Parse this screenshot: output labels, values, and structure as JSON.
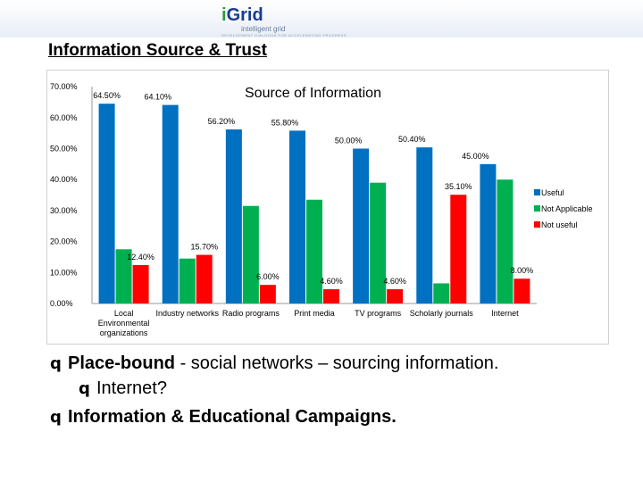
{
  "logo": {
    "prefix": "i",
    "main": "Grid",
    "sub": "intelligent grid",
    "tiny": "DEVELOPMENT DIALOGUE FOR ACCELERATING PROGRESS"
  },
  "slide_title": "Information Source & Trust",
  "bullets": [
    {
      "marker": "q",
      "bold": "Place-bound",
      "rest": " - social networks – sourcing information."
    },
    {
      "marker": "q",
      "bold": "",
      "rest": "Internet?"
    },
    {
      "marker": "q",
      "bold": "Information & Educational Campaigns.",
      "rest": ""
    }
  ],
  "colors": {
    "useful": "#0070c0",
    "not_applicable": "#00b050",
    "not_useful": "#ff0000"
  },
  "chart_data": {
    "type": "bar",
    "title": "Source of Information",
    "categories": [
      [
        "Local",
        "Environmental",
        "organizations"
      ],
      [
        "Industry networks"
      ],
      [
        "Radio programs"
      ],
      [
        "Print media"
      ],
      [
        "TV programs"
      ],
      [
        "Scholarly journals"
      ],
      [
        "Internet"
      ]
    ],
    "series": [
      {
        "name": "Useful",
        "values": [
          64.5,
          64.1,
          56.2,
          55.8,
          50.0,
          50.4,
          45.0
        ]
      },
      {
        "name": "Not Applicable",
        "values": [
          17.5,
          14.5,
          31.5,
          33.5,
          39.0,
          6.5,
          40.0
        ]
      },
      {
        "name": "Not useful",
        "values": [
          12.4,
          15.7,
          6.0,
          4.6,
          4.6,
          35.1,
          8.0
        ]
      }
    ],
    "data_labels": [
      {
        "series": 0,
        "index": 0,
        "text": "64.50%"
      },
      {
        "series": 0,
        "index": 1,
        "text": "64.10%"
      },
      {
        "series": 0,
        "index": 2,
        "text": "56.20%"
      },
      {
        "series": 0,
        "index": 3,
        "text": "55.80%"
      },
      {
        "series": 0,
        "index": 4,
        "text": "50.00%"
      },
      {
        "series": 0,
        "index": 5,
        "text": "50.40%"
      },
      {
        "series": 0,
        "index": 6,
        "text": "45.00%"
      },
      {
        "series": 2,
        "index": 0,
        "text": "12.40%"
      },
      {
        "series": 2,
        "index": 1,
        "text": "15.70%"
      },
      {
        "series": 2,
        "index": 2,
        "text": "6.00%"
      },
      {
        "series": 2,
        "index": 3,
        "text": "4.60%"
      },
      {
        "series": 2,
        "index": 4,
        "text": "4.60%"
      },
      {
        "series": 2,
        "index": 5,
        "text": "35.10%"
      },
      {
        "series": 2,
        "index": 6,
        "text": "8.00%"
      }
    ],
    "y_ticks": [
      "0.00%",
      "10.00%",
      "20.00%",
      "30.00%",
      "40.00%",
      "50.00%",
      "60.00%",
      "70.00%"
    ],
    "ylim": [
      0,
      70
    ],
    "grid": false,
    "legend_position": "right"
  }
}
